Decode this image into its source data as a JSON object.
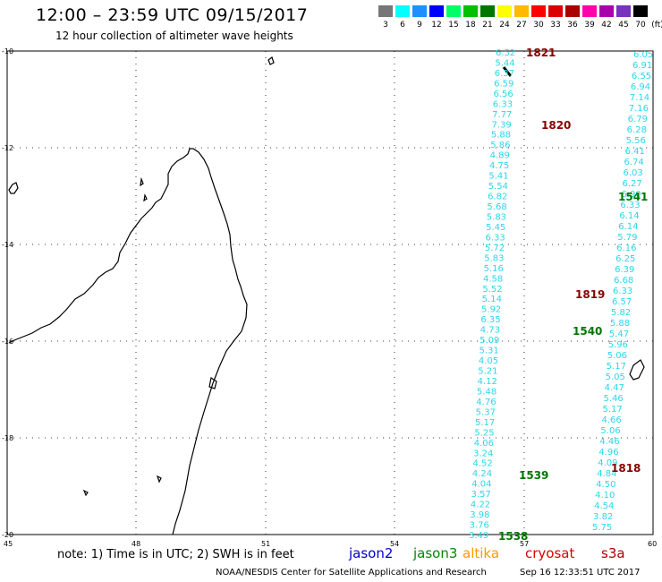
{
  "title": "12:00 – 23:59 UTC 09/15/2017",
  "subtitle": "12 hour collection of altimeter wave heights",
  "legend": {
    "unit": "(ft)",
    "items": [
      {
        "label": "3",
        "color": "#777777"
      },
      {
        "label": "6",
        "color": "#00ffff"
      },
      {
        "label": "9",
        "color": "#1e90ff"
      },
      {
        "label": "12",
        "color": "#0000ff"
      },
      {
        "label": "15",
        "color": "#00ff66"
      },
      {
        "label": "18",
        "color": "#00c000"
      },
      {
        "label": "21",
        "color": "#007700"
      },
      {
        "label": "24",
        "color": "#ffff00"
      },
      {
        "label": "27",
        "color": "#ffbb00"
      },
      {
        "label": "30",
        "color": "#ff0000"
      },
      {
        "label": "33",
        "color": "#dd0000"
      },
      {
        "label": "36",
        "color": "#aa0000"
      },
      {
        "label": "39",
        "color": "#ff00aa"
      },
      {
        "label": "42",
        "color": "#aa00aa"
      },
      {
        "label": "45",
        "color": "#7733bb"
      },
      {
        "label": "70",
        "color": "#000000"
      }
    ]
  },
  "axes": {
    "lat_labels": [
      "-10",
      "-12",
      "-14",
      "-16",
      "-18",
      "-20"
    ],
    "lon_labels": [
      "45",
      "48",
      "51",
      "54",
      "57",
      "60"
    ]
  },
  "colors": {
    "wave_text": "#2ad7e8",
    "pass_green": "#007700",
    "pass_red": "#880000"
  },
  "tracks": {
    "left": [
      "6.52",
      "5.44",
      "6.37",
      "6.59",
      "6.56",
      "6.33",
      "7.77",
      "7.39",
      "5.88",
      "5.86",
      "4.89",
      "4.75",
      "5.41",
      "5.54",
      "6.82",
      "5.68",
      "5.83",
      "5.45",
      "6.33",
      "5.72",
      "5.83",
      "5.16",
      "4.58",
      "5.52",
      "5.14",
      "5.92",
      "6.35",
      "4.73",
      "5.09",
      "5.31",
      "4.05",
      "5.21",
      "4.12",
      "5.48",
      "4.76",
      "5.37",
      "5.17",
      "5.25",
      "4.06",
      "3.24",
      "4.52",
      "4.24",
      "4.04",
      "3.57",
      "4.22",
      "3.98",
      "3.76",
      "3.49"
    ],
    "right": [
      "6.05",
      "6.91",
      "6.55",
      "6.94",
      "7.14",
      "7.16",
      "6.79",
      "6.28",
      "5.56",
      "6.41",
      "6.74",
      "6.03",
      "6.27",
      "6.90",
      "6.33",
      "6.14",
      "6.14",
      "5.79",
      "6.16",
      "6.25",
      "6.39",
      "6.68",
      "6.33",
      "6.57",
      "5.82",
      "5.88",
      "5.47",
      "5.96",
      "5.06",
      "5.17",
      "5.05",
      "4.47",
      "5.46",
      "5.17",
      "4.66",
      "5.06",
      "4.46",
      "4.96",
      "4.09",
      "4.84",
      "4.50",
      "4.10",
      "4.54",
      "3.82",
      "5.75"
    ]
  },
  "pass_labels": [
    {
      "text": "1821",
      "color": "#880000"
    },
    {
      "text": "1820",
      "color": "#880000"
    },
    {
      "text": "1541",
      "color": "#007700"
    },
    {
      "text": "1819",
      "color": "#880000"
    },
    {
      "text": "1540",
      "color": "#007700"
    },
    {
      "text": "1818",
      "color": "#880000"
    },
    {
      "text": "1539",
      "color": "#007700"
    },
    {
      "text": "1538",
      "color": "#007700"
    }
  ],
  "note": "note:  1) Time is in UTC;  2) SWH is in feet",
  "satellites": [
    {
      "name": "jason2",
      "color": "#0000cc"
    },
    {
      "name": "jason3",
      "color": "#008800"
    },
    {
      "name": "altika",
      "color": "#ff9900"
    },
    {
      "name": "cryosat",
      "color": "#dd0000"
    },
    {
      "name": "s3a",
      "color": "#aa0000"
    }
  ],
  "credit": "NOAA/NESDIS Center for Satellite Applications and Research",
  "created": "Sep 16 12:33:51 UTC 2017"
}
